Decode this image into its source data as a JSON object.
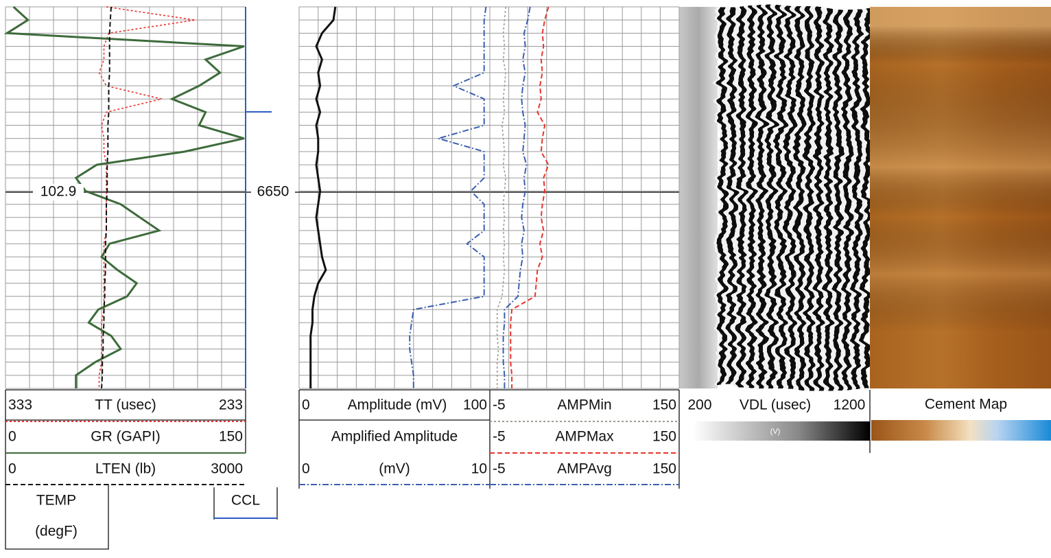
{
  "depth_label": "6650",
  "temp_label": "102.9",
  "curves": [
    {
      "label": "TT (usec)",
      "left": 333,
      "right": 233,
      "color": "#e8322c",
      "line": "dotted",
      "values": [
        291,
        254,
        290,
        292,
        292,
        294,
        291,
        268,
        291,
        293,
        292,
        292,
        291,
        291,
        291,
        291,
        291,
        291,
        292,
        292,
        292,
        292,
        292,
        292,
        293,
        293,
        293,
        293,
        294,
        294
      ]
    },
    {
      "label": "GR (GAPI)",
      "left": 0,
      "right": 150,
      "color": "#3d6b3a",
      "line": "solid",
      "values": [
        5,
        14,
        1,
        149,
        125,
        134,
        121,
        104,
        125,
        121,
        149,
        112,
        57,
        44,
        50,
        72,
        84,
        96,
        65,
        60,
        70,
        82,
        76,
        58,
        52,
        66,
        72,
        56,
        44,
        44
      ]
    },
    {
      "label": "LTEN (lb)",
      "left": 0,
      "right": 3000,
      "color": "#111111",
      "line": "dashed",
      "values": [
        1320,
        1310,
        1300,
        1300,
        1300,
        1300,
        1290,
        1290,
        1290,
        1280,
        1280,
        1280,
        1270,
        1270,
        1270,
        1260,
        1260,
        1260,
        1250,
        1250,
        1250,
        1240,
        1240,
        1230,
        1230,
        1220,
        1220,
        1210,
        1210,
        1200
      ]
    },
    {
      "label": "Amplitude (mV)",
      "left": 0,
      "right": 100,
      "color": "#111111",
      "line": "solid",
      "values": [
        19,
        18,
        12,
        9,
        12,
        10,
        11,
        9,
        11,
        9,
        10,
        10,
        9,
        10,
        11,
        10,
        9,
        10,
        11,
        12,
        14,
        10,
        8,
        7,
        7,
        6,
        6,
        6,
        6,
        6
      ]
    },
    {
      "title": "Amplified Amplitude",
      "label": "(mV)",
      "left": 0,
      "right": 10,
      "color": "#3a5fb0",
      "line": "dashdot",
      "values": [
        9.8,
        9.7,
        9.7,
        9.7,
        9.7,
        9.7,
        8.1,
        9.7,
        9.7,
        9.7,
        7.3,
        9.7,
        9.7,
        9.7,
        9.0,
        9.7,
        9.7,
        9.7,
        8.8,
        9.7,
        9.7,
        9.7,
        9.7,
        6.0,
        5.9,
        5.8,
        5.8,
        5.9,
        6.0,
        6.0
      ]
    },
    {
      "label": "AMPMin",
      "left": -5,
      "right": 150,
      "color": "#a09a90",
      "line": "dotted",
      "values": [
        8,
        7,
        6,
        7,
        6,
        8,
        7,
        6,
        7,
        5,
        6,
        7,
        6,
        8,
        7,
        6,
        7,
        6,
        7,
        6,
        7,
        6,
        5,
        1,
        1,
        1,
        2,
        1,
        1,
        1
      ]
    },
    {
      "label": "AMPMax",
      "left": -5,
      "right": 150,
      "color": "#e8322c",
      "line": "dashed",
      "values": [
        43,
        40,
        38,
        39,
        37,
        38,
        36,
        37,
        34,
        40,
        38,
        37,
        43,
        39,
        40,
        38,
        37,
        39,
        36,
        38,
        34,
        33,
        32,
        13,
        12,
        12,
        12,
        12,
        13,
        13
      ]
    },
    {
      "label": "AMPAvg",
      "left": -5,
      "right": 150,
      "color": "#3a5fb0",
      "line": "dashdot",
      "values": [
        28,
        26,
        23,
        24,
        22,
        24,
        22,
        21,
        22,
        24,
        23,
        22,
        25,
        23,
        24,
        22,
        21,
        23,
        21,
        22,
        20,
        19,
        18,
        7,
        7,
        6,
        6,
        6,
        7,
        7
      ]
    }
  ],
  "vdl": {
    "left": 200,
    "label": "VDL (usec)",
    "right": 1200,
    "unit": "(V)"
  },
  "cement_map": {
    "label": "Cement Map"
  },
  "temp_box": {
    "line1": "TEMP",
    "line2": "(degF)"
  },
  "ccl_box": {
    "label": "CCL"
  }
}
